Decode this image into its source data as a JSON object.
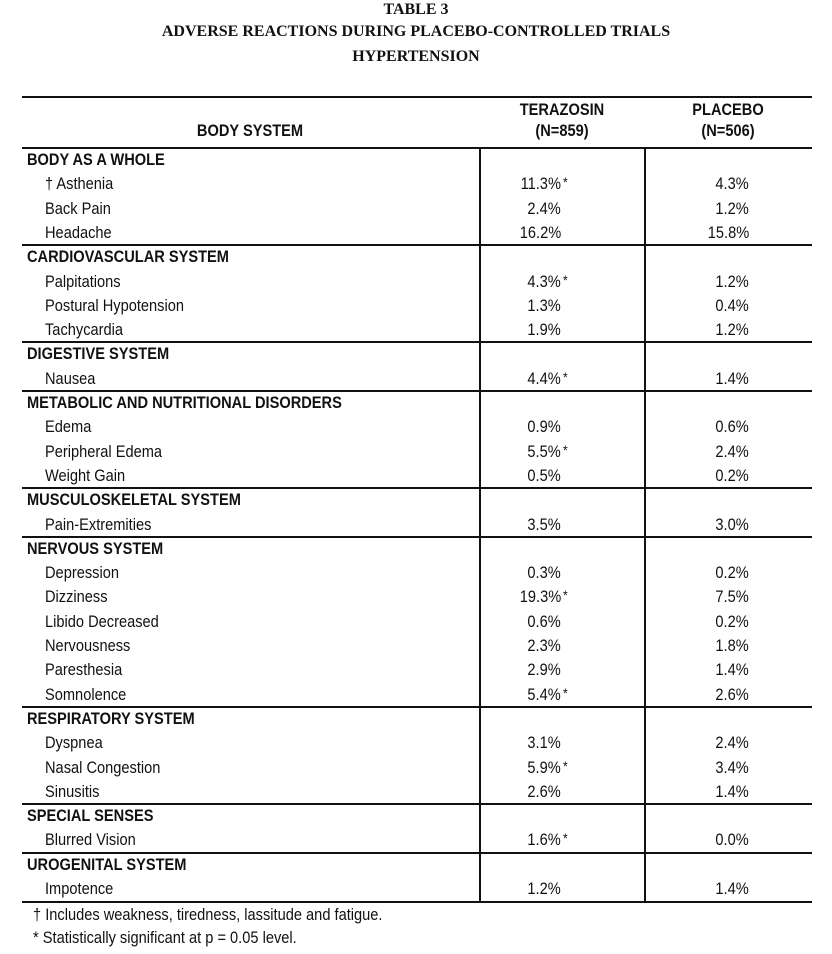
{
  "title": {
    "line1": "TABLE 3",
    "line2": "ADVERSE REACTIONS DURING PLACEBO-CONTROLLED TRIALS",
    "line3": "HYPERTENSION"
  },
  "header": {
    "body_system": "BODY SYSTEM",
    "terazosin": "TERAZOSIN",
    "terazosin_n": "(N=859)",
    "placebo": "PLACEBO",
    "placebo_n": "(N=506)"
  },
  "groups": [
    {
      "name": "BODY AS A WHOLE",
      "rows": [
        {
          "label": "† Asthenia",
          "terazosin": "11.3%",
          "sig": "*",
          "placebo": "4.3%"
        },
        {
          "label": "Back Pain",
          "terazosin": "2.4%",
          "placebo": "1.2%"
        },
        {
          "label": "Headache",
          "terazosin": "16.2%",
          "placebo": "15.8%"
        }
      ]
    },
    {
      "name": "CARDIOVASCULAR SYSTEM",
      "rows": [
        {
          "label": "Palpitations",
          "terazosin": "4.3%",
          "sig": "*",
          "placebo": "1.2%"
        },
        {
          "label": "Postural Hypotension",
          "terazosin": "1.3%",
          "placebo": "0.4%"
        },
        {
          "label": "Tachycardia",
          "terazosin": "1.9%",
          "placebo": "1.2%"
        }
      ]
    },
    {
      "name": "DIGESTIVE SYSTEM",
      "rows": [
        {
          "label": "Nausea",
          "terazosin": "4.4%",
          "sig": "*",
          "placebo": "1.4%"
        }
      ]
    },
    {
      "name": "METABOLIC AND NUTRITIONAL DISORDERS",
      "rows": [
        {
          "label": "Edema",
          "terazosin": "0.9%",
          "placebo": "0.6%"
        },
        {
          "label": "Peripheral Edema",
          "terazosin": "5.5%",
          "sig": "*",
          "placebo": "2.4%"
        },
        {
          "label": "Weight Gain",
          "terazosin": "0.5%",
          "placebo": "0.2%"
        }
      ]
    },
    {
      "name": "MUSCULOSKELETAL SYSTEM",
      "rows": [
        {
          "label": "Pain-Extremities",
          "terazosin": "3.5%",
          "placebo": "3.0%"
        }
      ]
    },
    {
      "name": "NERVOUS SYSTEM",
      "rows": [
        {
          "label": "Depression",
          "terazosin": "0.3%",
          "placebo": "0.2%"
        },
        {
          "label": "Dizziness",
          "terazosin": "19.3%",
          "sig": "*",
          "placebo": "7.5%"
        },
        {
          "label": "Libido Decreased",
          "terazosin": "0.6%",
          "placebo": "0.2%"
        },
        {
          "label": "Nervousness",
          "terazosin": "2.3%",
          "placebo": "1.8%"
        },
        {
          "label": "Paresthesia",
          "terazosin": "2.9%",
          "placebo": "1.4%"
        },
        {
          "label": "Somnolence",
          "terazosin": "5.4%",
          "sig": "*",
          "placebo": "2.6%"
        }
      ]
    },
    {
      "name": "RESPIRATORY SYSTEM",
      "rows": [
        {
          "label": "Dyspnea",
          "terazosin": "3.1%",
          "placebo": "2.4%"
        },
        {
          "label": "Nasal Congestion",
          "terazosin": "5.9%",
          "sig": "*",
          "placebo": "3.4%"
        },
        {
          "label": "Sinusitis",
          "terazosin": "2.6%",
          "placebo": "1.4%"
        }
      ]
    },
    {
      "name": "SPECIAL SENSES",
      "rows": [
        {
          "label": "Blurred Vision",
          "terazosin": "1.6%",
          "sig": "*",
          "placebo": "0.0%"
        }
      ]
    },
    {
      "name": "UROGENITAL SYSTEM",
      "rows": [
        {
          "label": "Impotence",
          "terazosin": "1.2%",
          "placebo": "1.4%"
        }
      ]
    }
  ],
  "footnotes": [
    "† Includes weakness, tiredness, lassitude and fatigue.",
    "* Statistically significant at p = 0.05 level."
  ]
}
